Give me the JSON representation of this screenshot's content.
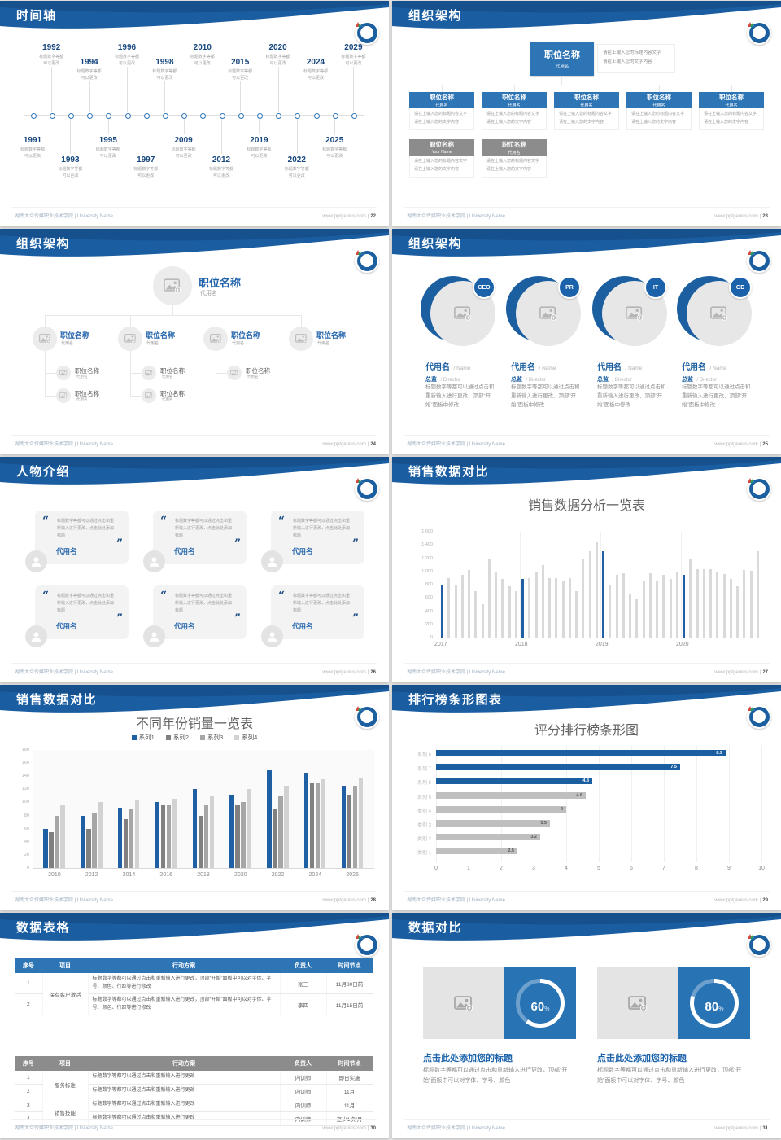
{
  "footer": {
    "left": "湖南大众传媒职业技术学院 | University Name",
    "site": "www.pptgenius.com",
    "sep": "|"
  },
  "colors": {
    "primary_blue": "#1a5da1",
    "box_blue": "#2e75b6",
    "box_gray": "#8c8c8c",
    "bar_blue": "#1f5fa4",
    "bar_gray": "#d9d9d9",
    "hbar_gray": "#bfbfbf",
    "panel_blue": "#2873b4"
  },
  "slides": [
    {
      "title": "时间轴",
      "page": "22"
    },
    {
      "title": "组织架构",
      "page": "23"
    },
    {
      "title": "组织架构",
      "page": "24"
    },
    {
      "title": "组织架构",
      "page": "25"
    },
    {
      "title": "人物介绍",
      "page": "26"
    },
    {
      "title": "销售数据对比",
      "page": "27"
    },
    {
      "title": "销售数据对比",
      "page": "28"
    },
    {
      "title": "排行榜条形图表",
      "page": "29"
    },
    {
      "title": "数据表格",
      "page": "30"
    },
    {
      "title": "数据对比",
      "page": "31"
    }
  ],
  "timeline": {
    "caption_line1": "标题数字等都",
    "caption_line2": "可以更改",
    "years_top": [
      "1992",
      "1994",
      "1996",
      "1998",
      "2010",
      "2015",
      "2020",
      "2024",
      "2029"
    ],
    "years_bottom": [
      "1991",
      "1993",
      "1995",
      "1997",
      "2009",
      "2012",
      "2019",
      "2022",
      "2025"
    ]
  },
  "org_boxes": {
    "root": {
      "title": "职位名称",
      "name": "代用名"
    },
    "note_line1": "请在上输入您的标题内容文字",
    "note_line2": "请在上输入您的文字内容",
    "children": [
      {
        "title": "职位名称",
        "name": "代用名"
      },
      {
        "title": "职位名称",
        "name": "代用名"
      },
      {
        "title": "职位名称",
        "name": "代用名"
      },
      {
        "title": "职位名称",
        "name": "代用名"
      },
      {
        "title": "职位名称",
        "name": "代用名"
      }
    ],
    "extra": [
      {
        "title": "职位名称",
        "name": "Your Name"
      },
      {
        "title": "职位名称",
        "name": "代用名"
      }
    ]
  },
  "org_tree": {
    "root": {
      "title": "职位名称",
      "name": "代用名"
    },
    "level2": [
      {
        "title": "职位名称",
        "name": "代用名"
      },
      {
        "title": "职位名称",
        "name": "代用名"
      },
      {
        "title": "职位名称",
        "name": "代用名"
      },
      {
        "title": "职位名称",
        "name": "代用名"
      }
    ],
    "sub_counts": [
      2,
      2,
      1,
      0
    ],
    "sub": {
      "title": "职位名称",
      "name": "代用名"
    }
  },
  "org_circles": {
    "badges": [
      "CEO",
      "PR",
      "IT",
      "GD"
    ],
    "name": "代用名",
    "name_en": "/ Name",
    "role": "总监",
    "role_en": "/ Director",
    "body": "标题数字等都可以通过点击和重新输入进行更改，顶部“开始”面板中修改"
  },
  "people": {
    "quote": "标题数字等都可以通过点击和重新输入进行更改，点击此处添加标题",
    "name": "代用名",
    "card_count": 6
  },
  "chart_data": [
    {
      "type": "bar",
      "title": "销售数据分析一览表",
      "groups": [
        "2017",
        "2018",
        "2019",
        "2020"
      ],
      "bars_per_group": 12,
      "values": [
        790,
        900,
        800,
        950,
        1020,
        700,
        500,
        1200,
        980,
        890,
        770,
        700,
        890,
        900,
        1000,
        1100,
        900,
        900,
        850,
        900,
        700,
        1200,
        1300,
        1450,
        1300,
        800,
        950,
        970,
        660,
        580,
        860,
        970,
        860,
        950,
        890,
        980,
        950,
        1200,
        1030,
        1040,
        1030,
        980,
        960,
        890,
        770,
        1020,
        1010,
        1300
      ],
      "highlight_every": 12,
      "bar_color": "#d9d9d9",
      "highlight_color": "#1f5fa4",
      "ylim": [
        0,
        1600
      ],
      "yticks": [
        "1,600",
        "1,400",
        "1,200",
        "1,000",
        "800",
        "600",
        "400",
        "200",
        "0"
      ],
      "xlabel": "",
      "ylabel": "",
      "legend": "none"
    },
    {
      "type": "bar",
      "title": "不同年份销量一览表",
      "categories": [
        "2010",
        "2012",
        "2014",
        "2016",
        "2018",
        "2020",
        "2022",
        "2024",
        "2026"
      ],
      "series": [
        {
          "name": "系列1",
          "color": "#1f5fa4",
          "values": [
            60,
            80,
            92,
            100,
            120,
            112,
            150,
            145,
            125
          ]
        },
        {
          "name": "系列2",
          "color": "#808080",
          "values": [
            55,
            60,
            75,
            95,
            80,
            95,
            90,
            130,
            112
          ]
        },
        {
          "name": "系列3",
          "color": "#a6a6a6",
          "values": [
            80,
            85,
            90,
            96,
            97,
            100,
            110,
            130,
            125
          ]
        },
        {
          "name": "系列4",
          "color": "#d2d2d2",
          "values": [
            95,
            100,
            103,
            106,
            111,
            120,
            126,
            135,
            137
          ]
        }
      ],
      "ylim": [
        0,
        180
      ],
      "yticks": [
        "180",
        "160",
        "140",
        "120",
        "100",
        "80",
        "60",
        "40",
        "20",
        "0"
      ],
      "legend_position": "top"
    },
    {
      "type": "bar-horizontal",
      "title": "评分排行榜条形图",
      "categories": [
        "系列 8",
        "系列 7",
        "系列 6",
        "系列 5",
        "类别 4",
        "类别 3",
        "类别 2",
        "类别 1"
      ],
      "values": [
        8.9,
        7.5,
        4.8,
        4.6,
        4,
        3.5,
        3.2,
        2.5
      ],
      "value_labels": [
        "8.9",
        "7.5",
        "4.8",
        "4.6",
        "4",
        "3.5",
        "3.2",
        "2.5"
      ],
      "bar_colors": [
        "#1b5fa0",
        "#1b5fa0",
        "#1b5fa0",
        "#bfbfbf",
        "#bfbfbf",
        "#bfbfbf",
        "#bfbfbf",
        "#bfbfbf"
      ],
      "xlim": [
        0,
        10
      ],
      "xticks": [
        "0",
        "1",
        "2",
        "3",
        "4",
        "5",
        "6",
        "7",
        "8",
        "9",
        "10"
      ]
    }
  ],
  "tables": {
    "headers": [
      "序号",
      "项目",
      "行动方案",
      "负责人",
      "时间节点"
    ],
    "table1": {
      "rows": [
        {
          "no": "1",
          "project": "保有客户激活",
          "action": "标题数字等都可以通过点击和重新输入进行更改，顶部“开始”面板中可以对字体、字号、颜色、行距等进行修改",
          "owner": "张三",
          "deadline": "11月30日前"
        },
        {
          "no": "2",
          "project": "",
          "action": "标题数字等都可以通过点击和重新输入进行更改，顶部“开始”面板中可以对字体、字号、颜色、行距等进行修改",
          "owner": "李四",
          "deadline": "11月15日前"
        }
      ]
    },
    "table2": {
      "rows": [
        {
          "no": "1",
          "project": "服务标准",
          "action": "标题数字等都可以通过点击和重新输入进行更改",
          "owner": "内训师",
          "deadline": "即日实施"
        },
        {
          "no": "2",
          "project": "",
          "action": "标题数字等都可以通过点击和重新输入进行更改",
          "owner": "内训师",
          "deadline": "11月"
        },
        {
          "no": "3",
          "project": "销售技能",
          "action": "标题数字等都可以通过点击和重新输入进行更改",
          "owner": "内训师",
          "deadline": "11月"
        },
        {
          "no": "4",
          "project": "",
          "action": "标题数字等都可以通过点击和重新输入进行更改",
          "owner": "内训师",
          "deadline": "至少1次/月"
        }
      ]
    }
  },
  "donuts": {
    "heading": "点击此处添加您的标题",
    "body": "标题数字等都可以通过点击和重新输入进行更改，顶部“开始”面板中可以对字体、字号、颜色",
    "items": [
      {
        "percent": 60,
        "label": "60",
        "pct_sign": "%"
      },
      {
        "percent": 80,
        "label": "80",
        "pct_sign": "%"
      }
    ]
  }
}
